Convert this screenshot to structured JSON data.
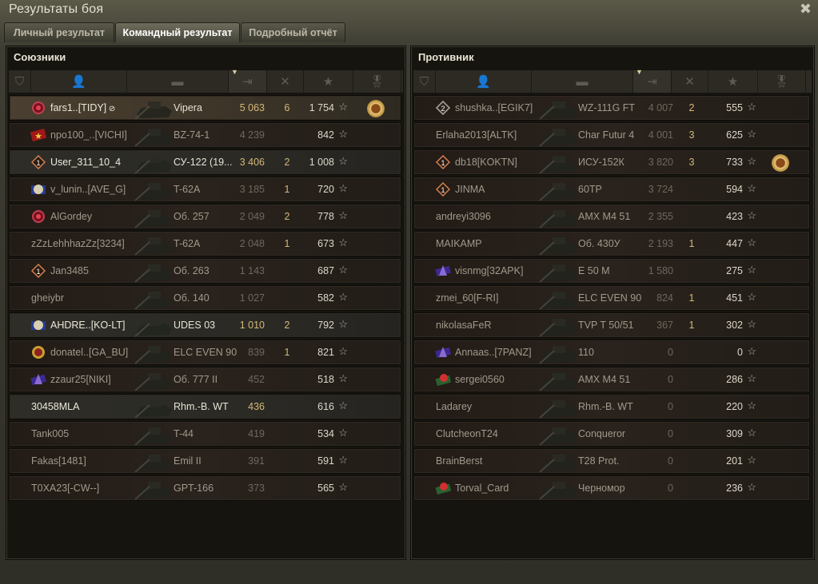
{
  "window": {
    "title": "Результаты боя"
  },
  "tabs": [
    {
      "label": "Личный результат"
    },
    {
      "label": "Командный результат",
      "active": true
    },
    {
      "label": "Подробный отчёт"
    }
  ],
  "header_icons": [
    "clan-rating-icon",
    "player-icon",
    "tank-icon",
    "damage-icon",
    "frags-icon",
    "xp-star-icon",
    "medal-icon"
  ],
  "sorted_column": "damage",
  "colors": {
    "highlight_damage": "#d4b878",
    "kills": "#d4b878"
  },
  "allies": {
    "title": "Союзники",
    "rows": [
      {
        "name": "fars1..[TIDY]",
        "badge": "clan-red",
        "hide_icon": true,
        "tank": "Vipera",
        "damage": "5 063",
        "kills": "6",
        "xp": "1 754",
        "medal": true,
        "hl": "hl"
      },
      {
        "name": "npo100_..[VICHI]",
        "badge": "clan-star",
        "tank": "BZ-74-1",
        "damage": "4 239",
        "kills": "",
        "xp": "842"
      },
      {
        "name": "User_311_10_4",
        "badge": "rank-1",
        "tank": "СУ-122 (19...",
        "damage": "3 406",
        "kills": "2",
        "xp": "1 008",
        "hl": "hl2"
      },
      {
        "name": "v_lunin..[AVE_G]",
        "badge": "clan-blue",
        "tank": "T-62A",
        "damage": "3 185",
        "kills": "1",
        "xp": "720"
      },
      {
        "name": "AlGordey",
        "badge": "clan-red",
        "tank": "Об. 257",
        "damage": "2 049",
        "kills": "2",
        "xp": "778"
      },
      {
        "name": "zZzLehhhazZz[3234]",
        "badge": "",
        "tank": "T-62A",
        "damage": "2 048",
        "kills": "1",
        "xp": "673"
      },
      {
        "name": "Jan3485",
        "badge": "rank-1",
        "tank": "Об. 263",
        "damage": "1 143",
        "kills": "",
        "xp": "687"
      },
      {
        "name": "gheiybr",
        "badge": "",
        "tank": "Об. 140",
        "damage": "1 027",
        "kills": "",
        "xp": "582"
      },
      {
        "name": "AHDRE..[KO-LT]",
        "badge": "clan-blue",
        "tank": "UDES 03",
        "damage": "1 010",
        "kills": "2",
        "xp": "792",
        "hl": "hl2"
      },
      {
        "name": "donatel..[GA_BU]",
        "badge": "clan-gold",
        "tank": "ELC EVEN 90",
        "damage": "839",
        "kills": "1",
        "xp": "821"
      },
      {
        "name": "zzaur25[NIKI]",
        "badge": "clan-purple",
        "tank": "Об. 777 II",
        "damage": "452",
        "kills": "",
        "xp": "518"
      },
      {
        "name": "30458MLA",
        "badge": "",
        "tank": "Rhm.-B. WT",
        "damage": "436",
        "kills": "",
        "xp": "616",
        "hl": "hl2"
      },
      {
        "name": "Tank005",
        "badge": "",
        "tank": "T-44",
        "damage": "419",
        "kills": "",
        "xp": "534"
      },
      {
        "name": "Fakas[1481]",
        "badge": "",
        "tank": "Emil II",
        "damage": "391",
        "kills": "",
        "xp": "591"
      },
      {
        "name": "T0XA23[-CW--]",
        "badge": "",
        "tank": "GPT-166",
        "damage": "373",
        "kills": "",
        "xp": "565"
      }
    ]
  },
  "enemies": {
    "title": "Противник",
    "rows": [
      {
        "name": "shushka..[EGIK7]",
        "badge": "rank-2",
        "tank": "WZ-111G FT",
        "damage": "4 007",
        "kills": "2",
        "xp": "555"
      },
      {
        "name": "Erlaha2013[ALTK]",
        "badge": "",
        "tank": "Char Futur 4",
        "damage": "4 001",
        "kills": "3",
        "xp": "625"
      },
      {
        "name": "db18[KOKTN]",
        "badge": "rank-1",
        "tank": "ИСУ-152К",
        "damage": "3 820",
        "kills": "3",
        "xp": "733",
        "medal": true
      },
      {
        "name": "JINMA",
        "badge": "rank-1",
        "tank": "60TP",
        "damage": "3 724",
        "kills": "",
        "xp": "594"
      },
      {
        "name": "andreyi3096",
        "badge": "",
        "tank": "AMX M4 51",
        "damage": "2 355",
        "kills": "",
        "xp": "423"
      },
      {
        "name": "MAIKAMP",
        "badge": "",
        "tank": "Об. 430У",
        "damage": "2 193",
        "kills": "1",
        "xp": "447"
      },
      {
        "name": "visnmg[32APK]",
        "badge": "clan-purple",
        "tank": "E 50 M",
        "damage": "1 580",
        "kills": "",
        "xp": "275"
      },
      {
        "name": "zmei_60[F-RI]",
        "badge": "",
        "tank": "ELC EVEN 90",
        "damage": "824",
        "kills": "1",
        "xp": "451"
      },
      {
        "name": "nikolasaFeR",
        "badge": "",
        "tank": "TVP T 50/51",
        "damage": "367",
        "kills": "1",
        "xp": "302"
      },
      {
        "name": "Annaas..[7PANZ]",
        "badge": "clan-purple",
        "tank": "110",
        "damage": "0",
        "kills": "",
        "xp": "0"
      },
      {
        "name": "sergei0560",
        "badge": "clan-flower",
        "tank": "AMX M4 51",
        "damage": "0",
        "kills": "",
        "xp": "286"
      },
      {
        "name": "Ladarey",
        "badge": "",
        "tank": "Rhm.-B. WT",
        "damage": "0",
        "kills": "",
        "xp": "220"
      },
      {
        "name": "ClutcheonT24",
        "badge": "",
        "tank": "Conqueror",
        "damage": "0",
        "kills": "",
        "xp": "309"
      },
      {
        "name": "BrainBerst",
        "badge": "",
        "tank": "T28 Prot.",
        "damage": "0",
        "kills": "",
        "xp": "201"
      },
      {
        "name": "Torval_Card",
        "badge": "clan-flower",
        "tank": "Черномор",
        "damage": "0",
        "kills": "",
        "xp": "236"
      }
    ]
  }
}
